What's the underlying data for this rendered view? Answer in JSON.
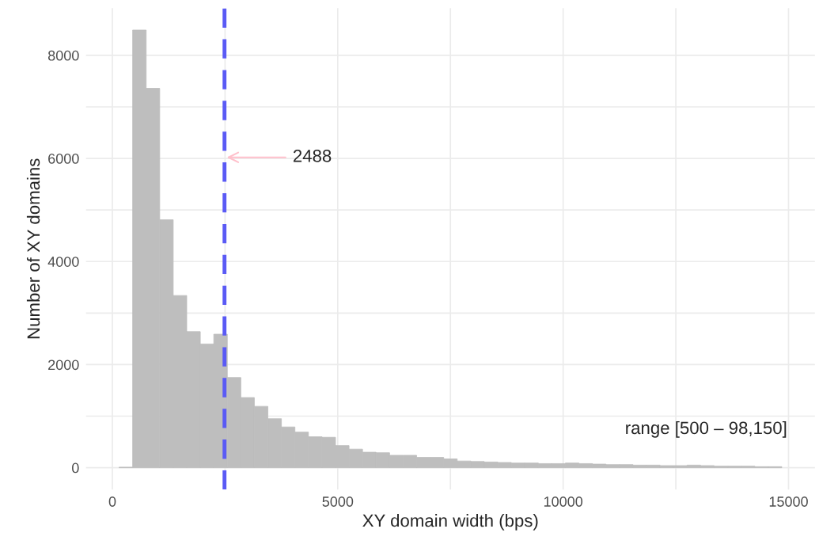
{
  "chart_data": {
    "type": "histogram",
    "xlabel": "XY domain width (bps)",
    "ylabel": "Number of XY domains",
    "bins": [
      150,
      450,
      750,
      1050,
      1350,
      1650,
      1950,
      2250,
      2550,
      2850,
      3150,
      3450,
      3750,
      4050,
      4350,
      4650,
      4950,
      5250,
      5550,
      5850,
      6150,
      6450,
      6750,
      7050,
      7350,
      7650,
      7950,
      8250,
      8550,
      8850,
      9150,
      9450,
      9750,
      10050,
      10350,
      10650,
      10950,
      11250,
      11550,
      11850,
      12150,
      12450,
      12750,
      13050,
      13350,
      13650,
      13950,
      14250,
      14550,
      14850
    ],
    "values": [
      10,
      8490,
      7360,
      4810,
      3340,
      2640,
      2400,
      2590,
      1750,
      1360,
      1190,
      950,
      790,
      690,
      600,
      590,
      430,
      360,
      300,
      290,
      240,
      240,
      200,
      200,
      170,
      130,
      120,
      110,
      100,
      90,
      90,
      80,
      80,
      90,
      80,
      70,
      60,
      60,
      50,
      50,
      40,
      40,
      50,
      40,
      30,
      30,
      30,
      20,
      20
    ],
    "color": "#bebebe",
    "xlim": [
      -585,
      15585
    ],
    "xticks": [
      0,
      5000,
      10000,
      15000
    ],
    "ylim": [
      -425,
      8915
    ],
    "yticks": [
      0,
      2000,
      4000,
      6000,
      8000
    ],
    "grid": true,
    "legend": false,
    "ref_lines": [
      {
        "axis": "x",
        "value": 2488,
        "color": "#5a5af5",
        "line_style": "dashed"
      }
    ],
    "annotations": [
      "2488",
      "range [500 – 98,150]"
    ]
  }
}
